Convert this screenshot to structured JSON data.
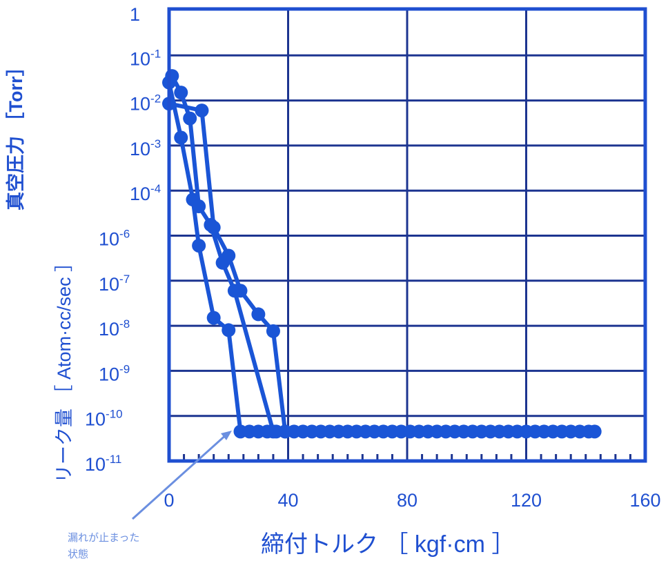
{
  "chart_data": {
    "type": "line",
    "xlabel": "締付トルク ［ kgf·cm ］",
    "ylabel_pressure": "真空圧力 ［Torr］",
    "ylabel_leak": "リーク量 ［ Atom·cc/sec ］",
    "xlim": [
      0,
      160
    ],
    "x_ticks": [
      "0",
      "40",
      "80",
      "120",
      "160"
    ],
    "x_tick_values": [
      0,
      40,
      80,
      120,
      160
    ],
    "y_scale": "log",
    "y_ticks": [
      {
        "base": "1",
        "exp": "",
        "value": 1
      },
      {
        "base": "10",
        "exp": "-1",
        "value": 0.1
      },
      {
        "base": "10",
        "exp": "-2",
        "value": 0.01
      },
      {
        "base": "10",
        "exp": "-3",
        "value": 0.001
      },
      {
        "base": "10",
        "exp": "-4",
        "value": 0.0001
      },
      {
        "base": "10",
        "exp": "-6",
        "value": 1e-06
      },
      {
        "base": "10",
        "exp": "-7",
        "value": 1e-07
      },
      {
        "base": "10",
        "exp": "-8",
        "value": 1e-08
      },
      {
        "base": "10",
        "exp": "-9",
        "value": 1e-09
      },
      {
        "base": "10",
        "exp": "-10",
        "value": 1e-10
      },
      {
        "base": "10",
        "exp": "-11",
        "value": 1e-11
      }
    ],
    "grid": true,
    "annotation": {
      "line1": "漏れが止まった",
      "line2": "状態",
      "points_to": [
        24,
        4.5e-11
      ]
    },
    "colors": {
      "axis": "#1f4fd0",
      "grid": "#1c3490",
      "series": "#1a55d6",
      "annotation": "#6b8fe0"
    },
    "series": [
      {
        "x": [
          0,
          4,
          8,
          10,
          15,
          20,
          24,
          27,
          30,
          33,
          36,
          39,
          42,
          45,
          48,
          51,
          54,
          57,
          60,
          63,
          66,
          69,
          72,
          75,
          78,
          81,
          84,
          87,
          90,
          93,
          96,
          99,
          102,
          105,
          108,
          111,
          114,
          117,
          120,
          123,
          126,
          129,
          132,
          135,
          138,
          141,
          143
        ],
        "y": [
          0.025,
          0.0015,
          4e-05,
          6e-07,
          1.5e-08,
          8e-09,
          4.5e-11,
          4.5e-11,
          4.5e-11,
          4.5e-11,
          4.5e-11,
          4.5e-11,
          4.5e-11,
          4.5e-11,
          4.5e-11,
          4.5e-11,
          4.5e-11,
          4.5e-11,
          4.5e-11,
          4.5e-11,
          4.5e-11,
          4.5e-11,
          4.5e-11,
          4.5e-11,
          4.5e-11,
          4.5e-11,
          4.5e-11,
          4.5e-11,
          4.5e-11,
          4.5e-11,
          4.5e-11,
          4.5e-11,
          4.5e-11,
          4.5e-11,
          4.5e-11,
          4.5e-11,
          4.5e-11,
          4.5e-11,
          4.5e-11,
          4.5e-11,
          4.5e-11,
          4.5e-11,
          4.5e-11,
          4.5e-11,
          4.5e-11,
          4.5e-11,
          4.5e-11
        ]
      },
      {
        "x": [
          1,
          4,
          7,
          10,
          14,
          18,
          22,
          35
        ],
        "y": [
          0.035,
          0.015,
          0.004,
          2e-05,
          3e-06,
          2.5e-07,
          6e-08,
          4.5e-11
        ]
      },
      {
        "x": [
          0,
          11,
          15,
          20,
          24,
          30,
          35,
          39
        ],
        "y": [
          0.0085,
          0.006,
          2.3e-06,
          3.6e-07,
          6e-08,
          1.8e-08,
          7.6e-09,
          4.5e-11
        ]
      }
    ]
  }
}
